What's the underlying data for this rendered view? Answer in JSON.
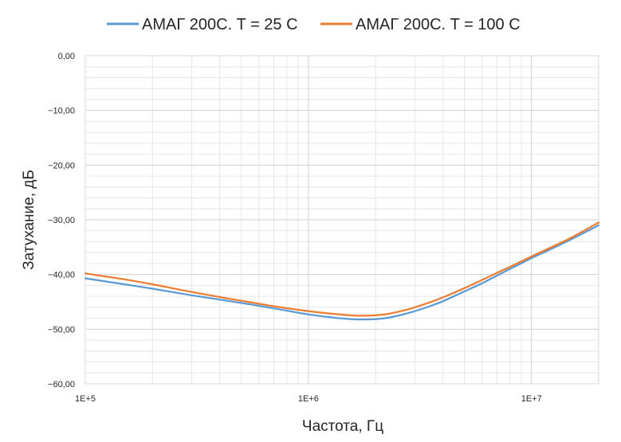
{
  "chart_data": {
    "type": "line",
    "xscale": "log",
    "xlim": [
      100000,
      20000000
    ],
    "ylim": [
      -60,
      0
    ],
    "xlabel": "Частота, Гц",
    "ylabel": "Затухание, дБ",
    "xticks": [
      {
        "value": 100000,
        "label": "1E+5"
      },
      {
        "value": 1000000,
        "label": "1E+6"
      },
      {
        "value": 10000000,
        "label": "1E+7"
      }
    ],
    "yticks": [
      {
        "value": 0,
        "label": "0,00"
      },
      {
        "value": -10,
        "label": "−10,00"
      },
      {
        "value": -20,
        "label": "−20,00"
      },
      {
        "value": -30,
        "label": "−30,00"
      },
      {
        "value": -40,
        "label": "−40,00"
      },
      {
        "value": -50,
        "label": "−50,00"
      },
      {
        "value": -60,
        "label": "−60,00"
      }
    ],
    "grid": true,
    "legend_position": "top",
    "series": [
      {
        "name": "АМАГ 200С. T = 25 С",
        "color": "#5B9BD5",
        "x": [
          100000,
          150000,
          200000,
          300000,
          500000,
          700000,
          1000000,
          1300000,
          1600000,
          1900000,
          2200000,
          2600000,
          3000000,
          3500000,
          4000000,
          5000000,
          6000000,
          7000000,
          8000000,
          10000000,
          12000000,
          15000000,
          20000000
        ],
        "y": [
          -40.7,
          -41.8,
          -42.6,
          -43.8,
          -45.2,
          -46.2,
          -47.3,
          -47.9,
          -48.2,
          -48.2,
          -48.0,
          -47.4,
          -46.7,
          -45.8,
          -44.9,
          -43.1,
          -41.6,
          -40.2,
          -39.0,
          -37.0,
          -35.5,
          -33.6,
          -31.0
        ]
      },
      {
        "name": "АМАГ 200С. T = 100 С",
        "color": "#ED7D31",
        "x": [
          100000,
          150000,
          200000,
          300000,
          500000,
          700000,
          1000000,
          1300000,
          1600000,
          1900000,
          2200000,
          2600000,
          3000000,
          3500000,
          4000000,
          5000000,
          6000000,
          7000000,
          8000000,
          10000000,
          12000000,
          15000000,
          20000000
        ],
        "y": [
          -39.8,
          -40.9,
          -41.8,
          -43.2,
          -44.8,
          -45.8,
          -46.7,
          -47.2,
          -47.5,
          -47.5,
          -47.3,
          -46.7,
          -46.0,
          -45.1,
          -44.2,
          -42.5,
          -41.0,
          -39.7,
          -38.6,
          -36.7,
          -35.2,
          -33.3,
          -30.5
        ]
      }
    ]
  }
}
